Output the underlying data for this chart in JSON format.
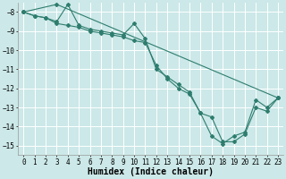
{
  "xlabel": "Humidex (Indice chaleur)",
  "ylabel": "",
  "xlim": [
    -0.5,
    23.5
  ],
  "ylim": [
    -15.5,
    -7.5
  ],
  "yticks": [
    -8,
    -9,
    -10,
    -11,
    -12,
    -13,
    -14,
    -15
  ],
  "xticks": [
    0,
    1,
    2,
    3,
    4,
    5,
    6,
    7,
    8,
    9,
    10,
    11,
    12,
    13,
    14,
    15,
    16,
    17,
    18,
    19,
    20,
    21,
    22,
    23
  ],
  "line1_x": [
    0,
    1,
    2,
    3,
    4,
    5,
    6,
    7,
    8,
    9,
    10,
    11,
    12,
    13,
    14,
    15,
    16,
    17,
    18,
    19,
    20,
    21,
    22,
    23
  ],
  "line1_y": [
    -8.0,
    -8.2,
    -8.3,
    -8.5,
    -7.6,
    -8.7,
    -8.9,
    -9.0,
    -9.1,
    -9.2,
    -8.6,
    -9.4,
    -11.0,
    -11.4,
    -11.8,
    -12.2,
    -13.3,
    -14.5,
    -14.9,
    -14.5,
    -14.3,
    -12.6,
    -13.0,
    -12.5
  ],
  "line2_x": [
    0,
    1,
    2,
    3,
    4,
    5,
    6,
    7,
    8,
    9,
    10,
    11,
    12,
    13,
    14,
    15,
    16,
    17,
    18,
    19,
    20,
    21,
    22,
    23
  ],
  "line2_y": [
    -8.0,
    -8.2,
    -8.3,
    -8.6,
    -8.7,
    -8.8,
    -9.0,
    -9.1,
    -9.2,
    -9.3,
    -9.5,
    -9.6,
    -10.8,
    -11.5,
    -12.0,
    -12.3,
    -13.3,
    -13.5,
    -14.8,
    -14.8,
    -14.4,
    -13.0,
    -13.2,
    -12.5
  ],
  "line3_x": [
    0,
    3,
    23
  ],
  "line3_y": [
    -8.0,
    -7.6,
    -12.5
  ],
  "line_color": "#2e7d6e",
  "bg_color": "#cce8e8",
  "grid_color": "#ffffff",
  "marker": "D",
  "marker_size": 2,
  "line_width": 0.8,
  "tick_fontsize": 5.5,
  "xlabel_fontsize": 7
}
